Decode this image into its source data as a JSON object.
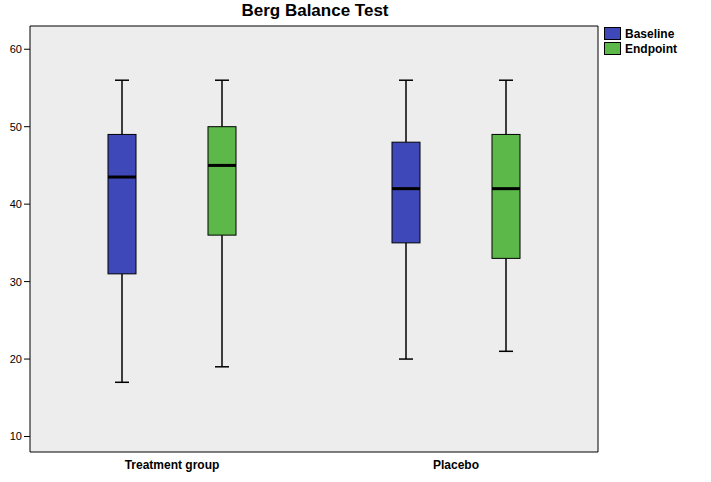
{
  "chart_data": {
    "type": "box",
    "title": "Berg Balance Test",
    "categories": [
      "Treatment group",
      "Placebo"
    ],
    "series": [
      {
        "name": "Baseline",
        "color": "#3f48b8",
        "values": [
          {
            "min": 17,
            "q1": 31,
            "median": 43.5,
            "q3": 49,
            "max": 56
          },
          {
            "min": 20,
            "q1": 35,
            "median": 42,
            "q3": 48,
            "max": 56
          }
        ]
      },
      {
        "name": "Endpoint",
        "color": "#5cb848",
        "values": [
          {
            "min": 19,
            "q1": 36,
            "median": 45,
            "q3": 50,
            "max": 56
          },
          {
            "min": 21,
            "q1": 33,
            "median": 42,
            "q3": 49,
            "max": 56
          }
        ]
      }
    ],
    "ylim": [
      8,
      63
    ],
    "yticks": [
      10,
      20,
      30,
      40,
      50,
      60
    ],
    "grid": false,
    "legend": "top-right"
  }
}
